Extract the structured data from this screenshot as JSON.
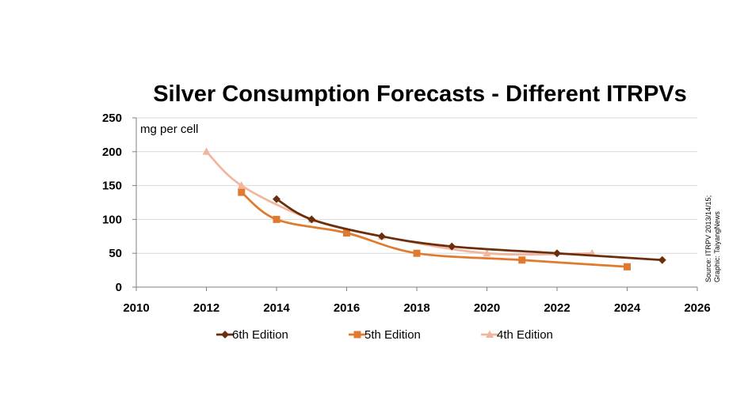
{
  "chart_data": {
    "type": "line",
    "title": "Silver Consumption Forecasts - Different ITRPVs",
    "unit_label": "mg per cell",
    "source_line1": "Source: ITRPV 2013/14/15;",
    "source_line2": "Graphic: TaiyangNews",
    "xlim": [
      2010,
      2026
    ],
    "ylim": [
      0,
      250
    ],
    "x_ticks": [
      "2010",
      "2012",
      "2014",
      "2016",
      "2018",
      "2020",
      "2022",
      "2024",
      "2026"
    ],
    "y_ticks": [
      "0",
      "50",
      "100",
      "150",
      "200",
      "250"
    ],
    "grid": "horizontal",
    "legend_position": "bottom",
    "series": [
      {
        "name": "6th Edition",
        "color": "#6b2e0c",
        "marker": "diamond",
        "points": [
          [
            2014,
            130
          ],
          [
            2015,
            100
          ],
          [
            2017,
            75
          ],
          [
            2019,
            60
          ],
          [
            2022,
            50
          ],
          [
            2025,
            40
          ]
        ]
      },
      {
        "name": "5th Edition",
        "color": "#e07a2e",
        "marker": "square",
        "points": [
          [
            2013,
            140
          ],
          [
            2014,
            100
          ],
          [
            2016,
            80
          ],
          [
            2018,
            50
          ],
          [
            2021,
            40
          ],
          [
            2024,
            30
          ]
        ]
      },
      {
        "name": "4th Edition",
        "color": "#f2b59e",
        "marker": "triangle",
        "points": [
          [
            2012,
            200
          ],
          [
            2013,
            150
          ],
          [
            2015,
            100
          ],
          [
            2017,
            75
          ],
          [
            2020,
            50
          ],
          [
            2023,
            50
          ]
        ]
      }
    ]
  }
}
